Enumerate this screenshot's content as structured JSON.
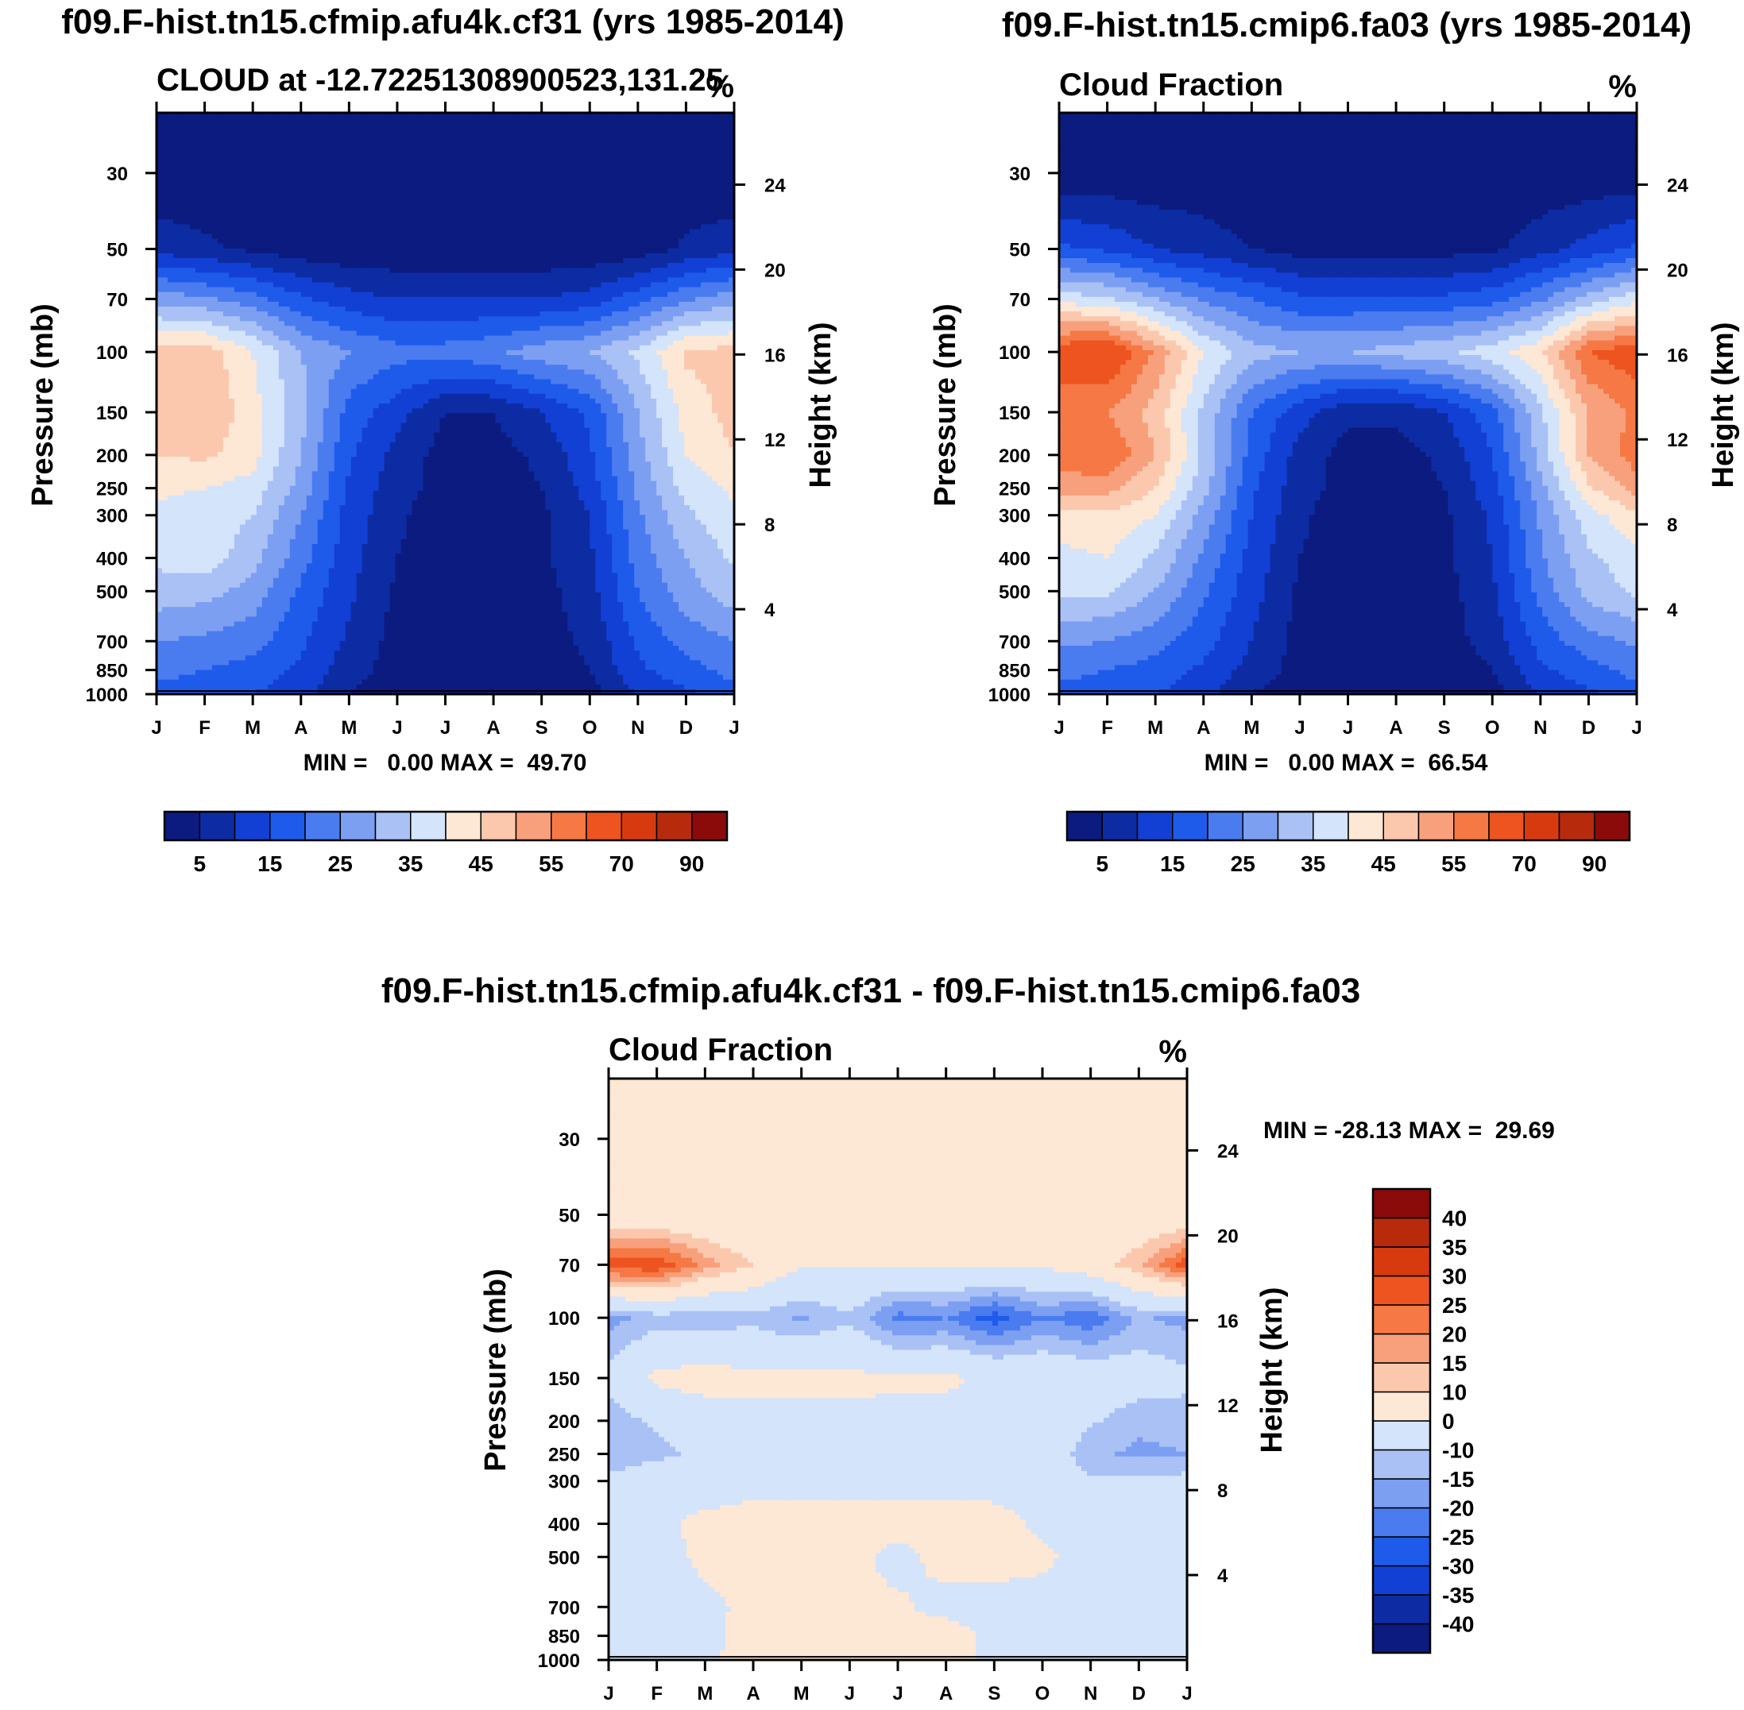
{
  "figure": {
    "panel_a_title": "f09.F-hist.tn15.cfmip.afu4k.cf31 (yrs 1985-2014)",
    "panel_b_title": "f09.F-hist.tn15.cmip6.fa03 (yrs 1985-2014)",
    "panel_c_title": "f09.F-hist.tn15.cfmip.afu4k.cf31 - f09.F-hist.tn15.cmip6.fa03"
  },
  "chart_data": [
    {
      "id": "panel_a",
      "type": "contour",
      "title": "f09.F-hist.tn15.cfmip.afu4k.cf31 (yrs 1985-2014)",
      "left_string": "CLOUD at -12.72251308900523,131.25",
      "right_string": "%",
      "xlabel": "",
      "ylabel": "Pressure (mb)",
      "ylabel_right": "Height (km)",
      "x_ticks": [
        "J",
        "F",
        "M",
        "A",
        "M",
        "J",
        "J",
        "A",
        "S",
        "O",
        "N",
        "D",
        "J"
      ],
      "y_ticks": [
        30,
        50,
        70,
        100,
        150,
        200,
        250,
        300,
        400,
        500,
        700,
        850,
        1000
      ],
      "y_right_ticks": [
        24,
        20,
        16,
        12,
        8,
        4
      ],
      "ylim": [
        1000,
        20
      ],
      "y_scale": "log",
      "min_max_text": "MIN =   0.00 MAX =  49.70",
      "min": 0.0,
      "max": 49.7,
      "colorbar": {
        "orientation": "horizontal",
        "levels": [
          5,
          10,
          15,
          20,
          25,
          30,
          35,
          40,
          45,
          50,
          55,
          60,
          70,
          80,
          90
        ],
        "labels": [
          "5",
          "15",
          "25",
          "35",
          "45",
          "55",
          "70",
          "90"
        ],
        "colors": [
          "#0b1b7f",
          "#0d2ca3",
          "#1240d4",
          "#1f5bea",
          "#4a7cf0",
          "#7c9ff2",
          "#a9c1f5",
          "#d3e4fb",
          "#fde7d5",
          "#fbc8ae",
          "#f8a07c",
          "#f57845",
          "#ee5420",
          "#d83a10",
          "#b72b0c",
          "#8b0a0a"
        ]
      },
      "z_levels": [
        1000,
        850,
        700,
        500,
        400,
        300,
        250,
        200,
        150,
        100,
        70,
        50,
        30,
        20
      ],
      "z_months": [
        "J",
        "F",
        "M",
        "A",
        "M",
        "J",
        "J",
        "A",
        "S",
        "O",
        "N",
        "D",
        "J"
      ],
      "values": [
        [
          18,
          17,
          15,
          12,
          5,
          2,
          2,
          2,
          2,
          3,
          10,
          14,
          18
        ],
        [
          22,
          20,
          18,
          14,
          7,
          3,
          2,
          2,
          2,
          5,
          14,
          18,
          22
        ],
        [
          25,
          24,
          22,
          16,
          9,
          3,
          2,
          2,
          3,
          6,
          16,
          22,
          25
        ],
        [
          33,
          32,
          28,
          19,
          11,
          4,
          2,
          2,
          3,
          8,
          20,
          28,
          33
        ],
        [
          36,
          38,
          32,
          22,
          12,
          5,
          2,
          2,
          4,
          9,
          22,
          30,
          36
        ],
        [
          39,
          38,
          35,
          25,
          13,
          6,
          2,
          2,
          4,
          10,
          24,
          34,
          39
        ],
        [
          41,
          40,
          38,
          28,
          14,
          7,
          3,
          3,
          5,
          12,
          26,
          37,
          41
        ],
        [
          45,
          46,
          42,
          30,
          16,
          8,
          3,
          3,
          6,
          14,
          28,
          40,
          45
        ],
        [
          47,
          49.7,
          42,
          32,
          18,
          12,
          5,
          5,
          10,
          16,
          30,
          42,
          47
        ],
        [
          47,
          48,
          40,
          30,
          25,
          22,
          22,
          24,
          28,
          30,
          36,
          46,
          47
        ],
        [
          28,
          26,
          22,
          16,
          12,
          10,
          10,
          10,
          10,
          12,
          18,
          24,
          28
        ],
        [
          8,
          6,
          4,
          2,
          1,
          1,
          1,
          1,
          1,
          1,
          2,
          6,
          8
        ],
        [
          1,
          1,
          1,
          1,
          0,
          0,
          0,
          0,
          0,
          0,
          1,
          1,
          1
        ],
        [
          0,
          0,
          0,
          0,
          0,
          0,
          0,
          0,
          0,
          0,
          0,
          0,
          0
        ]
      ]
    },
    {
      "id": "panel_b",
      "type": "contour",
      "title": "f09.F-hist.tn15.cmip6.fa03 (yrs 1985-2014)",
      "left_string": "Cloud Fraction",
      "right_string": "%",
      "xlabel": "",
      "ylabel": "Pressure (mb)",
      "ylabel_right": "Height (km)",
      "x_ticks": [
        "J",
        "F",
        "M",
        "A",
        "M",
        "J",
        "J",
        "A",
        "S",
        "O",
        "N",
        "D",
        "J"
      ],
      "y_ticks": [
        30,
        50,
        70,
        100,
        150,
        200,
        250,
        300,
        400,
        500,
        700,
        850,
        1000
      ],
      "y_right_ticks": [
        24,
        20,
        16,
        12,
        8,
        4
      ],
      "ylim": [
        1000,
        20
      ],
      "y_scale": "log",
      "min_max_text": "MIN =   0.00 MAX =  66.54",
      "min": 0.0,
      "max": 66.54,
      "colorbar": {
        "orientation": "horizontal",
        "levels": [
          5,
          10,
          15,
          20,
          25,
          30,
          35,
          40,
          45,
          50,
          55,
          60,
          70,
          80,
          90
        ],
        "labels": [
          "5",
          "15",
          "25",
          "35",
          "45",
          "55",
          "70",
          "90"
        ],
        "colors": [
          "#0b1b7f",
          "#0d2ca3",
          "#1240d4",
          "#1f5bea",
          "#4a7cf0",
          "#7c9ff2",
          "#a9c1f5",
          "#d3e4fb",
          "#fde7d5",
          "#fbc8ae",
          "#f8a07c",
          "#f57845",
          "#ee5420",
          "#d83a10",
          "#b72b0c",
          "#8b0a0a"
        ]
      },
      "z_levels": [
        1000,
        850,
        700,
        500,
        400,
        300,
        250,
        200,
        150,
        100,
        70,
        50,
        30,
        20
      ],
      "z_months": [
        "J",
        "F",
        "M",
        "A",
        "M",
        "J",
        "J",
        "A",
        "S",
        "O",
        "N",
        "D",
        "J"
      ],
      "values": [
        [
          18,
          17,
          15,
          12,
          5,
          2,
          2,
          2,
          2,
          3,
          10,
          14,
          18
        ],
        [
          22,
          20,
          18,
          14,
          8,
          3,
          2,
          2,
          2,
          5,
          14,
          18,
          22
        ],
        [
          26,
          25,
          22,
          17,
          10,
          3,
          2,
          2,
          3,
          7,
          17,
          23,
          26
        ],
        [
          36,
          36,
          30,
          21,
          12,
          4,
          2,
          2,
          3,
          9,
          22,
          32,
          36
        ],
        [
          38,
          40,
          34,
          24,
          13,
          5,
          2,
          2,
          4,
          10,
          24,
          34,
          38
        ],
        [
          44,
          44,
          40,
          28,
          15,
          6,
          2,
          2,
          4,
          11,
          26,
          38,
          44
        ],
        [
          52,
          52,
          45,
          32,
          16,
          7,
          3,
          3,
          5,
          13,
          28,
          44,
          52
        ],
        [
          58,
          60,
          50,
          34,
          18,
          8,
          3,
          3,
          6,
          15,
          32,
          50,
          58
        ],
        [
          56,
          55,
          48,
          34,
          20,
          12,
          6,
          6,
          10,
          18,
          34,
          50,
          56
        ],
        [
          64,
          66.5,
          54,
          40,
          32,
          30,
          30,
          32,
          34,
          38,
          44,
          60,
          64
        ],
        [
          38,
          36,
          30,
          24,
          20,
          16,
          16,
          16,
          16,
          18,
          24,
          32,
          38
        ],
        [
          16,
          14,
          10,
          8,
          5,
          3,
          3,
          3,
          3,
          4,
          8,
          12,
          16
        ],
        [
          1,
          1,
          1,
          1,
          0,
          0,
          0,
          0,
          0,
          0,
          1,
          1,
          1
        ],
        [
          0,
          0,
          0,
          0,
          0,
          0,
          0,
          0,
          0,
          0,
          0,
          0,
          0
        ]
      ]
    },
    {
      "id": "panel_c",
      "type": "contour",
      "title": "f09.F-hist.tn15.cfmip.afu4k.cf31 - f09.F-hist.tn15.cmip6.fa03",
      "left_string": "Cloud Fraction",
      "right_string": "%",
      "xlabel": "",
      "ylabel": "Pressure (mb)",
      "ylabel_right": "Height (km)",
      "x_ticks": [
        "J",
        "F",
        "M",
        "A",
        "M",
        "J",
        "J",
        "A",
        "S",
        "O",
        "N",
        "D",
        "J"
      ],
      "y_ticks": [
        30,
        50,
        70,
        100,
        150,
        200,
        250,
        300,
        400,
        500,
        700,
        850,
        1000
      ],
      "y_right_ticks": [
        24,
        20,
        16,
        12,
        8,
        4
      ],
      "ylim": [
        1000,
        20
      ],
      "y_scale": "log",
      "min_max_text": "MIN = -28.13 MAX =  29.69",
      "min": -28.13,
      "max": 29.69,
      "colorbar": {
        "orientation": "vertical",
        "levels": [
          -40,
          -35,
          -30,
          -25,
          -20,
          -15,
          -10,
          0,
          10,
          15,
          20,
          25,
          30,
          35,
          40
        ],
        "labels": [
          "-40",
          "-35",
          "-30",
          "-25",
          "-20",
          "-15",
          "-10",
          "0",
          "10",
          "15",
          "20",
          "25",
          "30",
          "35",
          "40"
        ],
        "colors": [
          "#0b1b7f",
          "#0d2ca3",
          "#1240d4",
          "#1f5bea",
          "#4a7cf0",
          "#7c9ff2",
          "#a9c1f5",
          "#d3e4fb",
          "#fde7d5",
          "#fbc8ae",
          "#f8a07c",
          "#f57845",
          "#ee5420",
          "#d83a10",
          "#b72b0c",
          "#8b0a0a"
        ]
      },
      "z_levels": [
        1000,
        850,
        700,
        500,
        400,
        300,
        250,
        200,
        150,
        100,
        70,
        50,
        30,
        20
      ],
      "z_months": [
        "J",
        "F",
        "M",
        "A",
        "M",
        "J",
        "J",
        "A",
        "S",
        "O",
        "N",
        "D",
        "J"
      ],
      "values": [
        [
          -1,
          -1,
          -1,
          2,
          2,
          2,
          1,
          2,
          -1,
          -1,
          -1,
          -1,
          -1
        ],
        [
          -1,
          -1,
          -2,
          3,
          3,
          3,
          2,
          3,
          -2,
          -2,
          -1,
          -1,
          -1
        ],
        [
          -1,
          -1,
          -1,
          1,
          1,
          1,
          1,
          -2,
          -2,
          -2,
          -1,
          -1,
          -1
        ],
        [
          -9,
          -2,
          1,
          2,
          2,
          2,
          -2,
          2,
          2,
          1,
          -2,
          -2,
          -9
        ],
        [
          -4,
          -3,
          3,
          3,
          3,
          3,
          2,
          3,
          2,
          -1,
          -2,
          -3,
          -4
        ],
        [
          -8,
          -4,
          -6,
          -2,
          -2,
          -2,
          -2,
          -2,
          -2,
          -3,
          -9,
          -8,
          -8
        ],
        [
          -15,
          -12,
          -8,
          -3,
          -2,
          -2,
          -2,
          -2,
          -3,
          -4,
          -14,
          -16,
          -15
        ],
        [
          -13,
          -9,
          -5,
          -2,
          -2,
          -2,
          -2,
          -2,
          -2,
          -3,
          -9,
          -14,
          -13
        ],
        [
          -8,
          2,
          4,
          2,
          2,
          2,
          1,
          1,
          -1,
          -2,
          -4,
          -6,
          -8
        ],
        [
          -17,
          -13,
          -14,
          -12,
          -16,
          -11,
          -22,
          -20,
          -28,
          -20,
          -24,
          -14,
          -17
        ],
        [
          28,
          29.7,
          18,
          10,
          1,
          1,
          1,
          1,
          1,
          1,
          6,
          14,
          28
        ],
        [
          3,
          2,
          2,
          1,
          1,
          1,
          1,
          1,
          1,
          1,
          1,
          2,
          3
        ],
        [
          0.5,
          0.5,
          0.5,
          0.5,
          0.5,
          0.5,
          0.5,
          0.5,
          0.5,
          0.5,
          0.5,
          0.5,
          0.5
        ],
        [
          0.5,
          0.5,
          0.5,
          0.5,
          0.5,
          0.5,
          0.5,
          0.5,
          0.5,
          0.5,
          0.5,
          0.5,
          0.5
        ]
      ]
    }
  ]
}
